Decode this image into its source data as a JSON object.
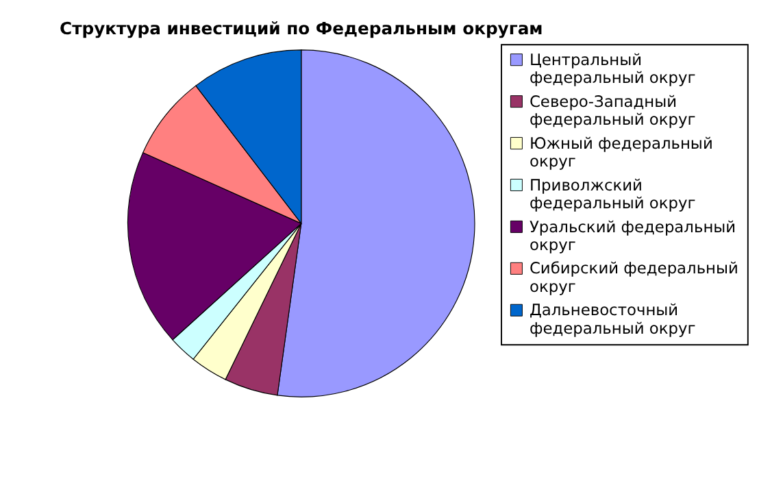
{
  "chart_data": {
    "type": "pie",
    "title": "Структура инвестиций по Федеральным округам",
    "categories": [
      "Центральный федеральный округ",
      "Северо-Западный федеральный округ",
      "Южный федеральный округ",
      "Приволжский федеральный округ",
      "Уральский федеральный округ",
      "Сибирский федеральный округ",
      "Дальневосточный федеральный округ"
    ],
    "values": [
      52.2,
      5,
      3.5,
      2.6,
      18.4,
      7.9,
      10.4
    ],
    "colors": [
      "#9999ff",
      "#993366",
      "#ffffcc",
      "#ccffff",
      "#660066",
      "#ff8080",
      "#0066cc"
    ],
    "legend": "right"
  }
}
